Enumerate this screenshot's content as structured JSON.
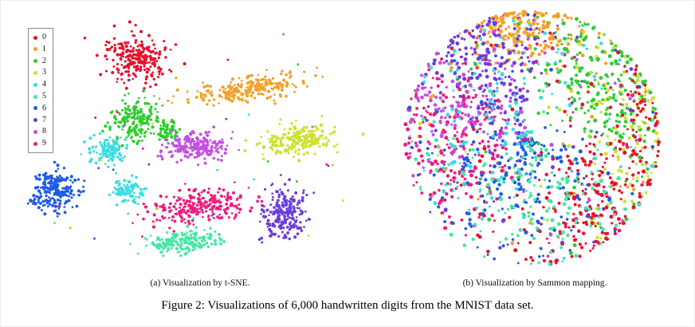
{
  "figure": {
    "caption": "Figure 2: Visualizations of 6,000 handwritten digits from the MNIST data set.",
    "panels": [
      {
        "id": "tsne",
        "caption": "(a) Visualization by t-SNE."
      },
      {
        "id": "sammon",
        "caption": "(b) Visualization by Sammon mapping."
      }
    ]
  },
  "legend": {
    "items": [
      "0",
      "1",
      "2",
      "3",
      "4",
      "5",
      "6",
      "7",
      "8",
      "9"
    ]
  },
  "digit_colors": {
    "0": "#e8112d",
    "1": "#f5a02a",
    "2": "#2ecc2e",
    "3": "#cde22e",
    "4": "#3adde0",
    "5": "#42e8a4",
    "6": "#1f5be8",
    "7": "#6a3ddd",
    "8": "#c44fe0",
    "9": "#ee1b7e"
  },
  "chart_data": [
    {
      "type": "scatter",
      "title": "(a) Visualization by t-SNE.",
      "description": "t-SNE embedding of 6,000 MNIST handwritten digits; ten well-separated clusters, one per digit class 0-9. No axes or gridlines shown; legend of digit classes at top-left.",
      "axes": "none",
      "grid": false,
      "legend_position": "top-left",
      "marker_px": 1.7,
      "seed": 42,
      "clusters": [
        {
          "digit": "0",
          "cx": 0.33,
          "cy": 0.19,
          "rx": 0.085,
          "ry": 0.095,
          "rot": -10,
          "n": 230
        },
        {
          "digit": "1",
          "cx": 0.63,
          "cy": 0.31,
          "rx": 0.16,
          "ry": 0.045,
          "rot": -13,
          "n": 230
        },
        {
          "digit": "2",
          "cx": 0.32,
          "cy": 0.44,
          "rx": 0.07,
          "ry": 0.085,
          "rot": 0,
          "n": 170
        },
        {
          "digit": "2",
          "cx": 0.41,
          "cy": 0.47,
          "rx": 0.032,
          "ry": 0.04,
          "rot": 0,
          "n": 50
        },
        {
          "digit": "3",
          "cx": 0.765,
          "cy": 0.51,
          "rx": 0.105,
          "ry": 0.055,
          "rot": -8,
          "n": 200
        },
        {
          "digit": "8",
          "cx": 0.49,
          "cy": 0.53,
          "rx": 0.085,
          "ry": 0.05,
          "rot": -5,
          "n": 200
        },
        {
          "digit": "4",
          "cx": 0.25,
          "cy": 0.545,
          "rx": 0.045,
          "ry": 0.05,
          "rot": 0,
          "n": 110
        },
        {
          "digit": "4",
          "cx": 0.3,
          "cy": 0.7,
          "rx": 0.037,
          "ry": 0.045,
          "rot": 0,
          "n": 90
        },
        {
          "digit": "6",
          "cx": 0.1,
          "cy": 0.7,
          "rx": 0.066,
          "ry": 0.082,
          "rot": 15,
          "n": 220
        },
        {
          "digit": "9",
          "cx": 0.5,
          "cy": 0.755,
          "rx": 0.135,
          "ry": 0.06,
          "rot": -10,
          "n": 240
        },
        {
          "digit": "7",
          "cx": 0.73,
          "cy": 0.78,
          "rx": 0.058,
          "ry": 0.1,
          "rot": 8,
          "n": 210
        },
        {
          "digit": "5",
          "cx": 0.46,
          "cy": 0.89,
          "rx": 0.1,
          "ry": 0.04,
          "rot": -6,
          "n": 170
        }
      ],
      "strays": {
        "per_digit": 4,
        "region": [
          0.08,
          0.1,
          0.82,
          0.78
        ]
      }
    },
    {
      "type": "scatter",
      "title": "(b) Visualization by Sammon mapping.",
      "description": "Sammon mapping of the same 6,000 MNIST digits; classes overlap heavily inside one roughly circular cloud. Orange (1) at top, greens (2,3) upper right, red (0) lower right, pink/magenta (9,8) left, violet (7) upper left, blue (6) and others intermixed through the middle.",
      "axes": "none",
      "grid": false,
      "marker_px": 2.0,
      "seed": 7,
      "disc": {
        "cx": 0.49,
        "cy": 0.5,
        "r": 0.97
      },
      "mix_fraction": 0.14,
      "groups": [
        {
          "digit": "1",
          "angle": 95,
          "angle_spread": 16,
          "r_mean": 0.88,
          "r_spread": 0.12,
          "n": 240
        },
        {
          "digit": "2",
          "angle": 38,
          "angle_spread": 26,
          "r_mean": 0.74,
          "r_spread": 0.22,
          "n": 260
        },
        {
          "digit": "3",
          "angle": 8,
          "angle_spread": 30,
          "r_mean": 0.8,
          "r_spread": 0.18,
          "n": 120
        },
        {
          "digit": "0",
          "angle": -42,
          "angle_spread": 32,
          "r_mean": 0.74,
          "r_spread": 0.22,
          "n": 280
        },
        {
          "digit": "0",
          "angle": 25,
          "angle_spread": 10,
          "r_mean": 0.93,
          "r_spread": 0.07,
          "n": 30
        },
        {
          "digit": "9",
          "angle": 185,
          "angle_spread": 28,
          "r_mean": 0.6,
          "r_spread": 0.28,
          "n": 260
        },
        {
          "digit": "8",
          "angle": 152,
          "angle_spread": 22,
          "r_mean": 0.66,
          "r_spread": 0.26,
          "n": 180
        },
        {
          "digit": "7",
          "angle": 122,
          "angle_spread": 20,
          "r_mean": 0.72,
          "r_spread": 0.24,
          "n": 200
        },
        {
          "digit": "6",
          "angle": -105,
          "angle_spread": 55,
          "r_mean": 0.45,
          "r_spread": 0.3,
          "n": 220
        },
        {
          "digit": "4",
          "angle": 168,
          "angle_spread": 55,
          "r_mean": 0.5,
          "r_spread": 0.3,
          "n": 150
        },
        {
          "digit": "5",
          "angle": -78,
          "angle_spread": 40,
          "r_mean": 0.6,
          "r_spread": 0.26,
          "n": 160
        }
      ]
    }
  ]
}
